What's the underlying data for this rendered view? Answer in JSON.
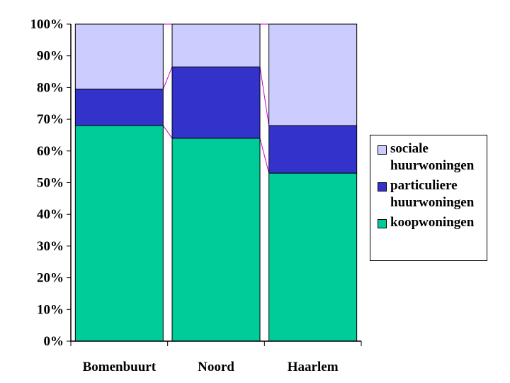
{
  "chart_data": {
    "type": "bar",
    "stacked": true,
    "percent_stacked": true,
    "categories": [
      "Bomenbuurt",
      "Noord",
      "Haarlem"
    ],
    "series": [
      {
        "name": "koopwoningen",
        "values": [
          68,
          64,
          53
        ],
        "color": "#00CC99"
      },
      {
        "name": "particuliere huurwoningen",
        "values": [
          11.5,
          22.5,
          15
        ],
        "color": "#3333CC"
      },
      {
        "name": "sociale huurwoningen",
        "values": [
          20.5,
          13.5,
          32
        ],
        "color": "#CCCCFF"
      }
    ],
    "legend_order": [
      "sociale huurwoningen",
      "particuliere huurwoningen",
      "koopwoningen"
    ],
    "legend_labels": {
      "sociale huurwoningen": "sociale\nhuurwoningen",
      "particuliere huurwoningen": "particuliere\nhuurwoningen",
      "koopwoningen": "koopwoningen"
    },
    "yticks": [
      "0%",
      "10%",
      "20%",
      "30%",
      "40%",
      "50%",
      "60%",
      "70%",
      "80%",
      "90%",
      "100%"
    ],
    "ylim": [
      0,
      100
    ],
    "legend_position": "right",
    "series_lines_color": "#CC00CC",
    "title": "",
    "xlabel": "",
    "ylabel": ""
  }
}
